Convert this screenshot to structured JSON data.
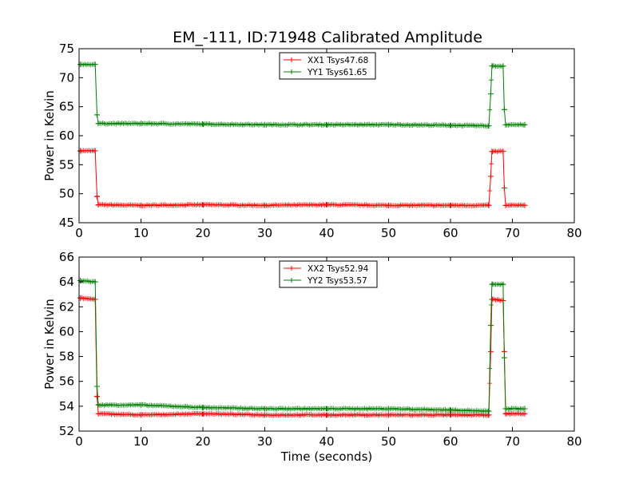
{
  "title": "EM_-111, ID:71948 Calibrated Amplitude",
  "chart_data": [
    {
      "type": "line",
      "ylabel": "Power in Kelvin",
      "xlabel": "",
      "xlim": [
        0,
        80
      ],
      "ylim": [
        45,
        75
      ],
      "xticks": [
        0,
        10,
        20,
        30,
        40,
        50,
        60,
        70,
        80
      ],
      "yticks": [
        45,
        50,
        55,
        60,
        65,
        70,
        75
      ],
      "legend": "top-center",
      "series": [
        {
          "name": "XX1 Tsys47.68",
          "color": "#ff0000",
          "points": [
            [
              0.2,
              57.4
            ],
            [
              2.6,
              57.4
            ],
            [
              2.9,
              49.5
            ],
            [
              3.1,
              48.1
            ],
            [
              10,
              48.0
            ],
            [
              20,
              48.1
            ],
            [
              30,
              48.0
            ],
            [
              40,
              48.1
            ],
            [
              50,
              48.0
            ],
            [
              60,
              48.0
            ],
            [
              66.2,
              48.0
            ],
            [
              66.5,
              53.0
            ],
            [
              66.7,
              57.3
            ],
            [
              68.5,
              57.3
            ],
            [
              68.7,
              51.0
            ],
            [
              68.9,
              48.0
            ],
            [
              72,
              48.0
            ]
          ]
        },
        {
          "name": "YY1 Tsys61.65",
          "color": "#008000",
          "points": [
            [
              0.2,
              72.3
            ],
            [
              2.6,
              72.3
            ],
            [
              2.9,
              63.6
            ],
            [
              3.1,
              62.1
            ],
            [
              10,
              62.1
            ],
            [
              20,
              62.0
            ],
            [
              30,
              61.9
            ],
            [
              40,
              61.9
            ],
            [
              50,
              61.9
            ],
            [
              60,
              61.8
            ],
            [
              66.2,
              61.7
            ],
            [
              66.5,
              67.2
            ],
            [
              66.7,
              72.0
            ],
            [
              68.5,
              72.0
            ],
            [
              68.7,
              64.5
            ],
            [
              68.9,
              61.9
            ],
            [
              72,
              61.9
            ]
          ]
        }
      ]
    },
    {
      "type": "line",
      "ylabel": "Power in Kelvin",
      "xlabel": "Time (seconds)",
      "xlim": [
        0,
        80
      ],
      "ylim": [
        52,
        66
      ],
      "xticks": [
        0,
        10,
        20,
        30,
        40,
        50,
        60,
        70,
        80
      ],
      "yticks": [
        52,
        54,
        56,
        58,
        60,
        62,
        64,
        66
      ],
      "legend": "top-center",
      "series": [
        {
          "name": "XX2 Tsys52.94",
          "color": "#ff0000",
          "points": [
            [
              0.2,
              62.7
            ],
            [
              2.6,
              62.6
            ],
            [
              2.9,
              54.8
            ],
            [
              3.1,
              53.4
            ],
            [
              10,
              53.3
            ],
            [
              20,
              53.4
            ],
            [
              30,
              53.3
            ],
            [
              40,
              53.3
            ],
            [
              50,
              53.3
            ],
            [
              60,
              53.3
            ],
            [
              66.2,
              53.3
            ],
            [
              66.5,
              58.4
            ],
            [
              66.7,
              62.6
            ],
            [
              68.5,
              62.5
            ],
            [
              68.7,
              58.4
            ],
            [
              68.9,
              53.4
            ],
            [
              72,
              53.4
            ]
          ]
        },
        {
          "name": "YY2 Tsys53.57",
          "color": "#008000",
          "points": [
            [
              0.2,
              64.1
            ],
            [
              2.6,
              64.0
            ],
            [
              2.9,
              55.6
            ],
            [
              3.1,
              54.1
            ],
            [
              10,
              54.1
            ],
            [
              20,
              53.9
            ],
            [
              30,
              53.8
            ],
            [
              40,
              53.8
            ],
            [
              50,
              53.8
            ],
            [
              60,
              53.7
            ],
            [
              66.2,
              53.6
            ],
            [
              66.5,
              60.5
            ],
            [
              66.7,
              63.8
            ],
            [
              68.5,
              63.8
            ],
            [
              68.7,
              57.9
            ],
            [
              68.9,
              53.8
            ],
            [
              72,
              53.8
            ]
          ]
        }
      ]
    }
  ]
}
